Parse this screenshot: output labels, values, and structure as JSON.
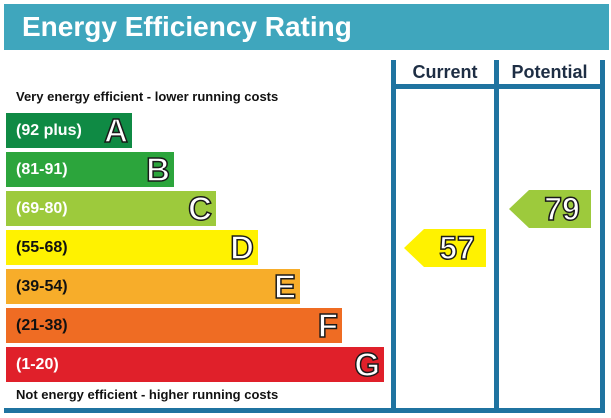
{
  "title": "Energy Efficiency Rating",
  "columns": {
    "current": "Current",
    "potential": "Potential"
  },
  "top_caption": "Very energy efficient - lower running costs",
  "bottom_caption": "Not energy efficient - higher running costs",
  "chart_data": {
    "type": "bar",
    "title": "Energy Efficiency Rating",
    "categories": [
      "A",
      "B",
      "C",
      "D",
      "E",
      "F",
      "G"
    ],
    "bands": [
      {
        "letter": "A",
        "range": "(92 plus)",
        "min": 92,
        "max": 100,
        "color": "#0f8a44",
        "text_color": "#ffffff"
      },
      {
        "letter": "B",
        "range": "(81-91)",
        "min": 81,
        "max": 91,
        "color": "#2ca53c",
        "text_color": "#ffffff"
      },
      {
        "letter": "C",
        "range": "(69-80)",
        "min": 69,
        "max": 80,
        "color": "#9dca3c",
        "text_color": "#ffffff"
      },
      {
        "letter": "D",
        "range": "(55-68)",
        "min": 55,
        "max": 68,
        "color": "#fff200",
        "text_color": "#111111"
      },
      {
        "letter": "E",
        "range": "(39-54)",
        "min": 39,
        "max": 54,
        "color": "#f7ad2a",
        "text_color": "#111111"
      },
      {
        "letter": "F",
        "range": "(21-38)",
        "min": 21,
        "max": 38,
        "color": "#ef6c23",
        "text_color": "#111111"
      },
      {
        "letter": "G",
        "range": "(1-20)",
        "min": 1,
        "max": 20,
        "color": "#e0202a",
        "text_color": "#ffffff"
      }
    ],
    "current": {
      "value": 57,
      "band": "D",
      "color": "#fff200"
    },
    "potential": {
      "value": 79,
      "band": "C",
      "color": "#9dca3c"
    }
  }
}
